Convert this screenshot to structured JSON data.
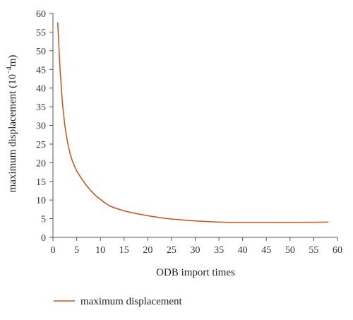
{
  "chart_data": {
    "type": "line",
    "xlabel": "ODB import times",
    "ylabel_main": "maximum displacement (10",
    "ylabel_sup": "−4",
    "ylabel_end": "m)",
    "xlim": [
      0,
      60
    ],
    "ylim": [
      0,
      60
    ],
    "xticks": [
      "0",
      "5",
      "10",
      "15",
      "20",
      "25",
      "30",
      "35",
      "40",
      "45",
      "50",
      "55",
      "60"
    ],
    "yticks": [
      "0",
      "5",
      "10",
      "15",
      "20",
      "25",
      "30",
      "35",
      "40",
      "45",
      "50",
      "55",
      "60"
    ],
    "grid": false,
    "legend_position": "bottom-left",
    "series": [
      {
        "name": "maximum displacement",
        "color": "#c8501e",
        "x": [
          1,
          1.5,
          2,
          2.5,
          3,
          3.5,
          4,
          4.5,
          5,
          6,
          7,
          8,
          9,
          10,
          11,
          12,
          13,
          14,
          15,
          17,
          20,
          23,
          25,
          28,
          30,
          33,
          35,
          38,
          40,
          43,
          45,
          48,
          50,
          53,
          55,
          58
        ],
        "y": [
          57.5,
          45,
          36,
          30,
          26,
          23,
          20.8,
          19.2,
          17.8,
          15.8,
          14,
          12.5,
          11.2,
          10.2,
          9.2,
          8.4,
          7.9,
          7.5,
          7.1,
          6.5,
          5.8,
          5.2,
          4.9,
          4.6,
          4.4,
          4.2,
          4.1,
          4.0,
          4.0,
          4.0,
          4.0,
          4.0,
          4.0,
          4.05,
          4.05,
          4.1
        ]
      }
    ]
  }
}
